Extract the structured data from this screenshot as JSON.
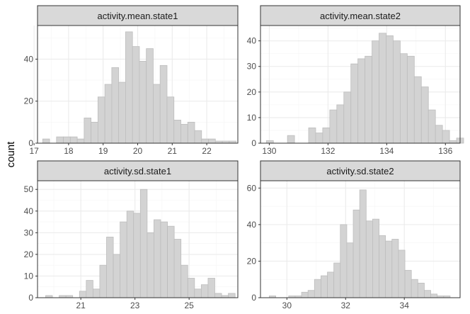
{
  "shared_ylabel": "count",
  "colors": {
    "bar_fill": "#d3d3d3",
    "bar_stroke": "#bdbdbd",
    "strip_fill": "#d9d9d9",
    "panel_border": "#333333",
    "grid_major": "#ebebeb",
    "grid_minor": "#f5f5f5",
    "tick_text": "#4d4d4d"
  },
  "chart_data": [
    {
      "type": "bar",
      "title": "activity.mean.state1",
      "ylabel": "count",
      "xlim": [
        17.1,
        22.9
      ],
      "ylim": [
        0,
        56
      ],
      "xticks": [
        17,
        18,
        19,
        20,
        21,
        22
      ],
      "xtick_labels": [
        "17",
        "18",
        "19",
        "20",
        "21",
        "22"
      ],
      "yticks": [
        0,
        20,
        40
      ],
      "ytick_labels": [
        "0",
        "20",
        "40"
      ],
      "bin_start": 17.25,
      "bin_width": 0.2,
      "values": [
        2,
        0,
        3,
        3,
        3,
        2,
        12,
        10,
        22,
        28,
        36,
        29,
        53,
        46,
        39,
        45,
        28,
        37,
        22,
        11,
        9,
        10,
        6,
        2,
        2,
        1,
        1,
        1
      ]
    },
    {
      "type": "bar",
      "title": "activity.mean.state2",
      "ylabel": "count",
      "xlim": [
        129.7,
        136.5
      ],
      "ylim": [
        0,
        46
      ],
      "xticks": [
        130,
        132,
        134,
        136
      ],
      "xtick_labels": [
        "130",
        "132",
        "134",
        "136"
      ],
      "yticks": [
        0,
        10,
        20,
        30,
        40
      ],
      "ytick_labels": [
        "0",
        "10",
        "20",
        "30",
        "40"
      ],
      "bin_start": 129.9,
      "bin_width": 0.24,
      "values": [
        1,
        0,
        0,
        3,
        0,
        0,
        6,
        4,
        6,
        13,
        15,
        20,
        31,
        33,
        34,
        40,
        43,
        42,
        40,
        35,
        34,
        26,
        22,
        13,
        7,
        5,
        1,
        2
      ]
    },
    {
      "type": "bar",
      "title": "activity.sd.state1",
      "ylabel": "count",
      "xlim": [
        19.4,
        26.8
      ],
      "ylim": [
        0,
        54
      ],
      "xticks": [
        21,
        23,
        25
      ],
      "xtick_labels": [
        "21",
        "23",
        "25"
      ],
      "yticks": [
        0,
        10,
        20,
        30,
        40,
        50
      ],
      "ytick_labels": [
        "0",
        "10",
        "20",
        "30",
        "40",
        "50"
      ],
      "bin_start": 19.7,
      "bin_width": 0.25,
      "values": [
        1,
        0,
        1,
        1,
        0,
        3,
        8,
        4,
        15,
        28,
        20,
        35,
        40,
        39,
        50,
        30,
        36,
        35,
        33,
        27,
        15,
        9,
        4,
        6,
        9,
        2,
        1,
        2
      ]
    },
    {
      "type": "bar",
      "title": "activity.sd.state2",
      "ylabel": "count",
      "xlim": [
        29.1,
        35.9
      ],
      "ylim": [
        0,
        64
      ],
      "xticks": [
        30,
        32,
        34
      ],
      "xtick_labels": [
        "30",
        "32",
        "34"
      ],
      "yticks": [
        0,
        20,
        40,
        60
      ],
      "ytick_labels": [
        "0",
        "20",
        "40",
        "60"
      ],
      "bin_start": 29.4,
      "bin_width": 0.22,
      "values": [
        1,
        0,
        0,
        1,
        1,
        3,
        4,
        10,
        12,
        14,
        19,
        40,
        30,
        48,
        59,
        42,
        43,
        34,
        31,
        32,
        26,
        15,
        10,
        8,
        4,
        2,
        1,
        1
      ]
    }
  ]
}
